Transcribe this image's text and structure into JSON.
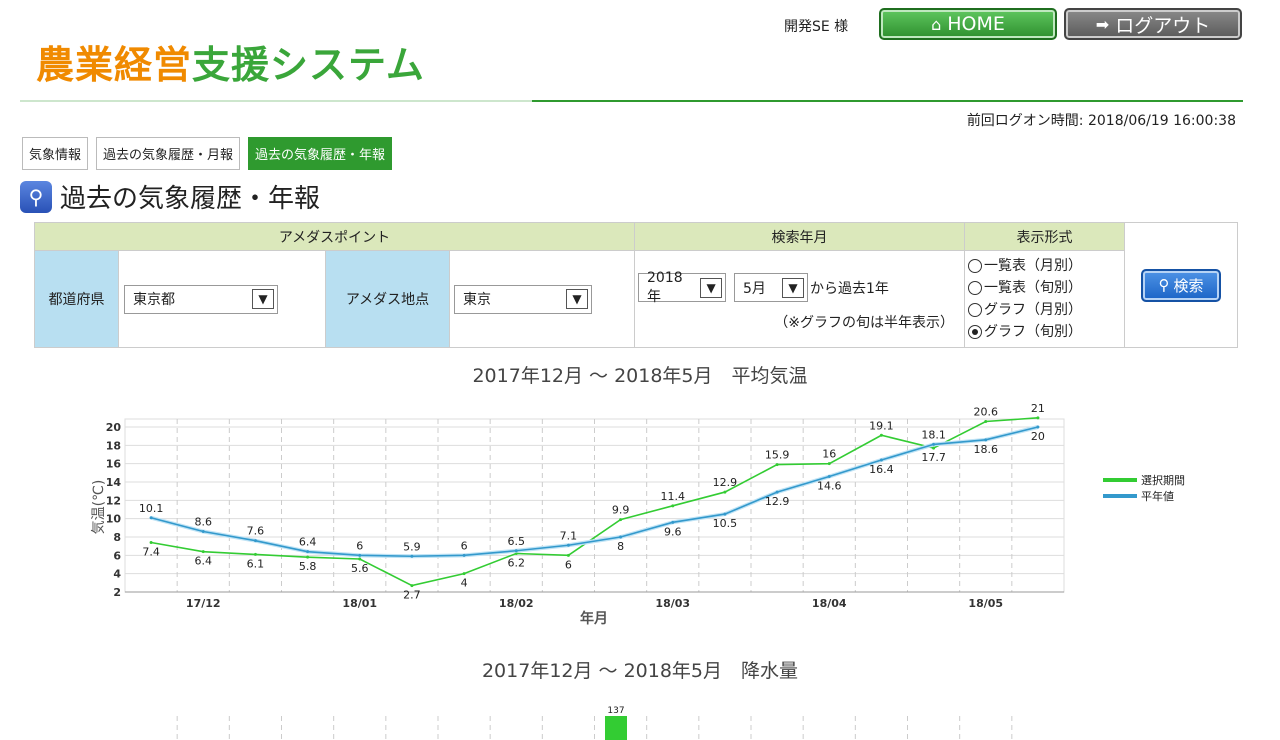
{
  "header": {
    "logo_part1": "農業経営",
    "logo_part2": "支援システム",
    "user": "開発SE 様",
    "home_label": "HOME",
    "logout_label": "ログアウト",
    "last_login": "前回ログオン時間: 2018/06/19 16:00:38"
  },
  "tabs": [
    {
      "label": "気象情報"
    },
    {
      "label": "過去の気象履歴・月報"
    },
    {
      "label": "過去の気象履歴・年報"
    }
  ],
  "page_title": "過去の気象履歴・年報",
  "search": {
    "amedas_header": "アメダスポイント",
    "date_header": "検索年月",
    "format_header": "表示形式",
    "pref_label": "都道府県",
    "pref_value": "東京都",
    "point_label": "アメダス地点",
    "point_value": "東京",
    "year_value": "2018年",
    "month_value": "5月",
    "range_text": "から過去1年",
    "note_text": "（※グラフの旬は半年表示）",
    "options": [
      "一覧表（月別）",
      "一覧表（旬別）",
      "グラフ（月別）",
      "グラフ（旬別）"
    ],
    "selected_option": 3,
    "search_label": "検索"
  },
  "chart_data": [
    {
      "type": "line",
      "title": "2017年12月 〜 2018年5月　平均気温",
      "xlabel": "年月",
      "ylabel": "気温(℃)",
      "ylim": [
        2,
        20
      ],
      "yticks": [
        2,
        4,
        6,
        8,
        10,
        12,
        14,
        16,
        18,
        20
      ],
      "xtick_labels": [
        "17/12",
        "18/01",
        "18/02",
        "18/03",
        "18/04",
        "18/05"
      ],
      "legend_position": "right",
      "series": [
        {
          "name": "選択期間",
          "color": "#33cc33",
          "values": [
            7.4,
            6.4,
            6.1,
            5.8,
            5.6,
            2.7,
            4,
            6.2,
            6,
            9.9,
            11.4,
            12.9,
            15.9,
            16,
            19.1,
            17.7,
            20.6,
            21
          ]
        },
        {
          "name": "平年値",
          "color": "#3399cc",
          "values": [
            10.1,
            8.6,
            7.6,
            6.4,
            6,
            5.9,
            6,
            6.5,
            7.1,
            8,
            9.6,
            10.5,
            12.9,
            14.6,
            16.4,
            18.1,
            18.6,
            20
          ]
        }
      ]
    },
    {
      "type": "bar",
      "title": "2017年12月 〜 2018年5月　降水量",
      "visible_values": [
        137
      ]
    }
  ]
}
